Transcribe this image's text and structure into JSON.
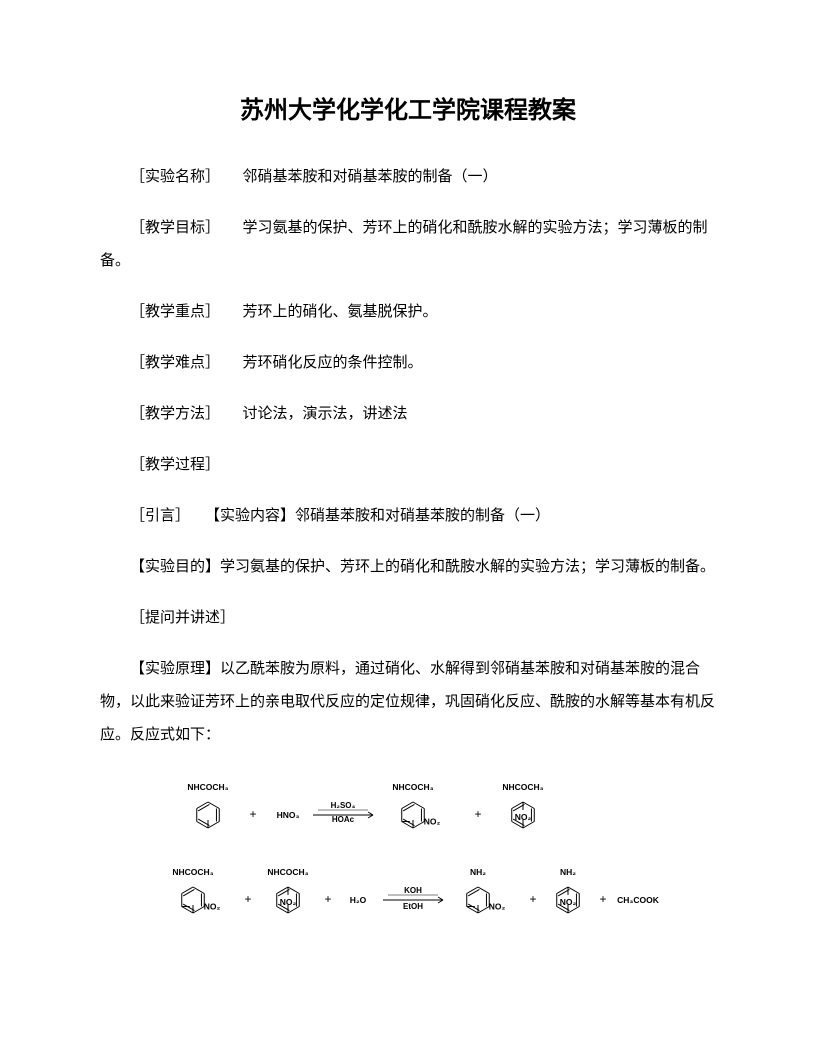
{
  "title": "苏州大学化学化工学院课程教案",
  "sections": [
    {
      "label": "［实验名称］",
      "text": "邻硝基苯胺和对硝基苯胺的制备（一）"
    },
    {
      "label": "［教学目标］",
      "text": "学习氨基的保护、芳环上的硝化和酰胺水解的实验方法；学习薄板的制备。",
      "wrap": true
    },
    {
      "label": "［教学重点］",
      "text": "芳环上的硝化、氨基脱保护。"
    },
    {
      "label": "［教学难点］",
      "text": "芳环硝化反应的条件控制。"
    },
    {
      "label": "［教学方法］",
      "text": "讨论法，演示法，讲述法"
    },
    {
      "label": "［教学过程］",
      "text": ""
    },
    {
      "label": "［引言］",
      "text": "【实验内容】邻硝基苯胺和对硝基苯胺的制备（一）"
    },
    {
      "label": "【实验目的】",
      "text": "学习氨基的保护、芳环上的硝化和酰胺水解的实验方法；学习薄板的制备。",
      "nolabelspace": true,
      "wrap": true
    },
    {
      "label": "［提问并讲述］",
      "text": ""
    },
    {
      "label": "【实验原理】",
      "text": "以乙酰苯胺为原料，通过硝化、水解得到邻硝基苯胺和对硝基苯胺的混合物，以此来验证芳环上的亲电取代反应的定位规律，巩固硝化反应、酰胺的水解等基本有机反应。反应式如下：",
      "nolabelspace": true,
      "wrap": true
    }
  ],
  "diagram": {
    "labels": {
      "nhcoch3": "NHCOCH₃",
      "nh2": "NH₂",
      "no2": "NO₂",
      "hno3": "HNO₃",
      "h2so4": "H₂SO₄",
      "hoac": "HOAc",
      "h2o": "H₂O",
      "koh": "KOH",
      "etoh": "EtOH",
      "ch3cook": "CH₃COOK",
      "plus": "+"
    },
    "font": {
      "label_size": 8.5,
      "reagent_size": 8,
      "op_size": 12
    },
    "colors": {
      "line": "#000000",
      "text": "#000000",
      "bg": "#ffffff"
    }
  }
}
